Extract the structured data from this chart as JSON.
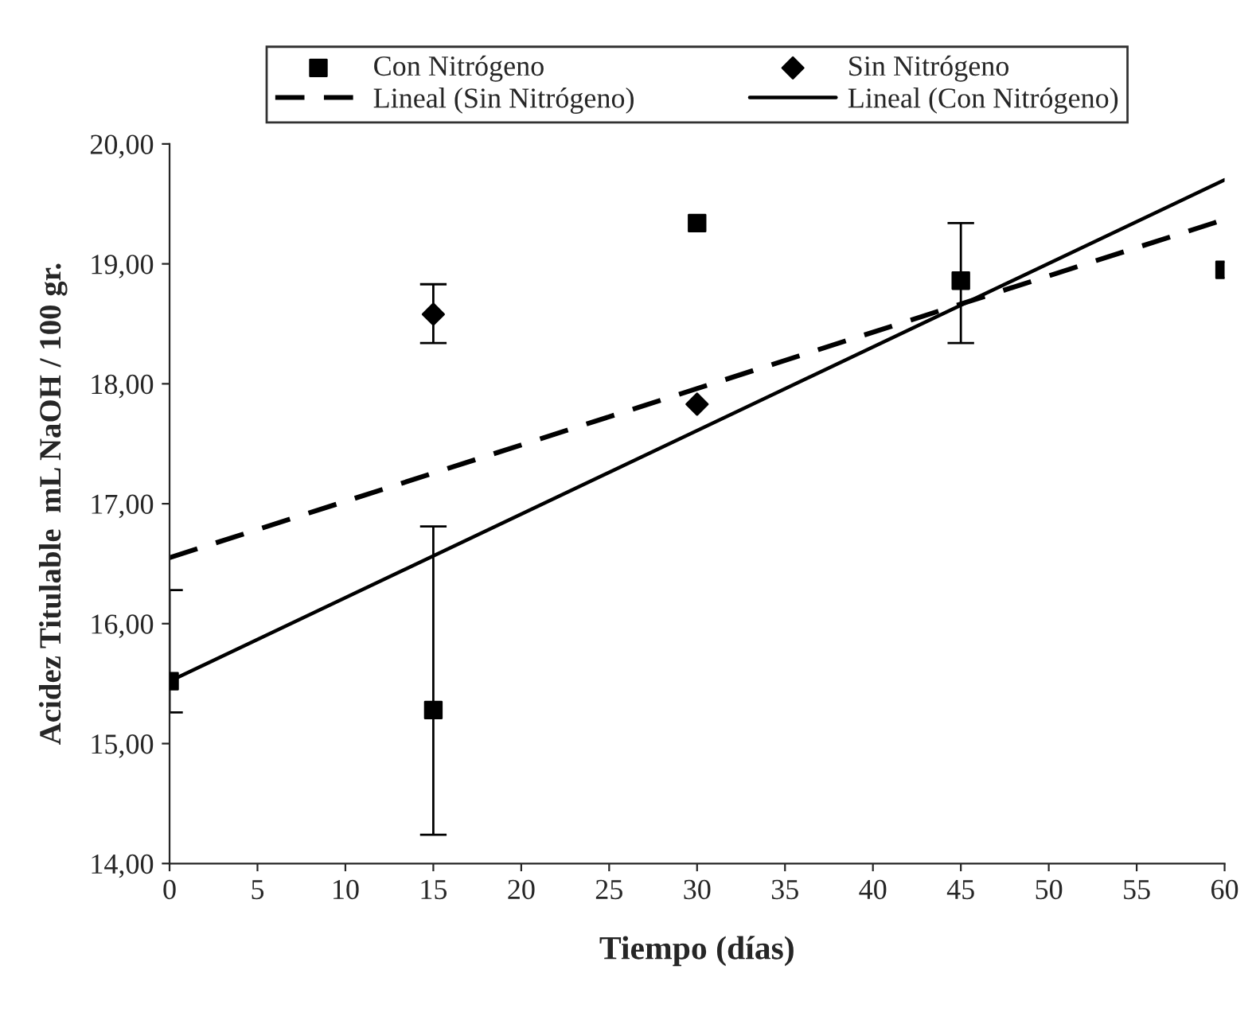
{
  "chart_data": {
    "type": "scatter",
    "xlabel": "Tiempo (días)",
    "ylabel": "Acidez Titulable  mL NaOH / 100 gr.",
    "xlim": [
      0,
      60
    ],
    "xticks": [
      0,
      5,
      10,
      15,
      20,
      25,
      30,
      35,
      40,
      45,
      50,
      55,
      60
    ],
    "ylim": [
      14,
      20
    ],
    "yticks": [
      {
        "value": 14,
        "label": "14,00"
      },
      {
        "value": 15,
        "label": "15,00"
      },
      {
        "value": 16,
        "label": "16,00"
      },
      {
        "value": 17,
        "label": "17,00"
      },
      {
        "value": 18,
        "label": "18,00"
      },
      {
        "value": 19,
        "label": "19,00"
      },
      {
        "value": 20,
        "label": "20,00"
      }
    ],
    "grid": false,
    "legend": "top",
    "series": [
      {
        "name": "Con Nitrógeno",
        "marker": "square",
        "color": "#000000",
        "x": [
          0,
          15,
          30,
          45,
          60
        ],
        "values": [
          15.52,
          15.28,
          19.34,
          18.86,
          18.95
        ],
        "errors": [
          [
            15.26,
            16.28
          ],
          [
            14.24,
            16.81
          ],
          null,
          [
            18.34,
            19.34
          ],
          null
        ]
      },
      {
        "name": "Sin Nitrógeno",
        "marker": "diamond",
        "color": "#000000",
        "x": [
          15,
          30
        ],
        "values": [
          18.58,
          17.83
        ],
        "errors": [
          [
            18.34,
            18.83
          ],
          null
        ]
      },
      {
        "name": "Lineal (Sin Nitrógeno)",
        "type": "line",
        "line_style": "dashed",
        "color": "#000000",
        "x": [
          0,
          60
        ],
        "values": [
          16.55,
          19.37
        ]
      },
      {
        "name": "Lineal (Con Nitrógeno)",
        "type": "line",
        "line_style": "solid",
        "color": "#000000",
        "x": [
          0,
          60
        ],
        "values": [
          15.52,
          19.7
        ]
      }
    ]
  }
}
